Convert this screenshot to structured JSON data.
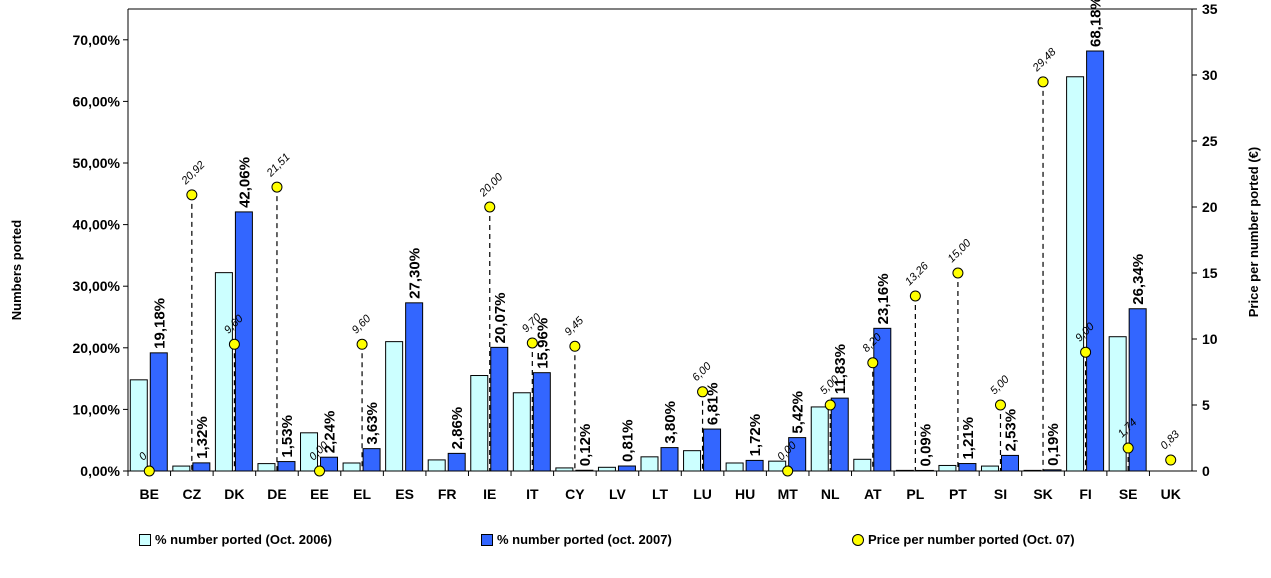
{
  "chart_data": {
    "type": "bar",
    "categories": [
      "BE",
      "CZ",
      "DK",
      "DE",
      "EE",
      "EL",
      "ES",
      "FR",
      "IE",
      "IT",
      "CY",
      "LV",
      "LT",
      "LU",
      "HU",
      "MT",
      "NL",
      "AT",
      "PL",
      "PT",
      "SI",
      "SK",
      "FI",
      "SE",
      "UK"
    ],
    "series": [
      {
        "name": "% number ported (Oct. 2006)",
        "color": "#ccffff",
        "values": [
          14.8,
          0.8,
          32.2,
          1.2,
          6.2,
          1.3,
          21.0,
          1.8,
          15.5,
          12.7,
          0.5,
          0.6,
          2.3,
          3.3,
          1.3,
          1.6,
          10.4,
          1.9,
          0.1,
          0.9,
          0.8,
          0.1,
          64.0,
          21.8,
          0
        ],
        "labels": [
          "",
          "",
          "",
          "",
          "",
          "",
          "",
          "",
          "",
          "",
          "",
          "",
          "",
          "",
          "",
          "",
          "",
          "",
          "",
          "",
          "",
          "",
          "",
          "",
          ""
        ]
      },
      {
        "name": "% number ported (oct. 2007)",
        "color": "#3366ff",
        "values": [
          19.18,
          1.32,
          42.06,
          1.53,
          2.24,
          3.63,
          27.3,
          2.86,
          20.07,
          15.96,
          0.12,
          0.81,
          3.8,
          6.81,
          1.72,
          5.42,
          11.83,
          23.16,
          0.09,
          1.21,
          2.53,
          0.19,
          68.18,
          26.34,
          0
        ],
        "labels": [
          "19,18%",
          "1,32%",
          "42,06%",
          "1,53%",
          "2,24%",
          "3,63%",
          "27,30%",
          "2,86%",
          "20,07%",
          "15,96%",
          "0,12%",
          "0,81%",
          "3,80%",
          "6,81%",
          "1,72%",
          "5,42%",
          "11,83%",
          "23,16%",
          "0,09%",
          "1,21%",
          "2,53%",
          "0,19%",
          "68,18%",
          "26,34%",
          ""
        ]
      },
      {
        "name": "Price per number ported (Oct. 07)",
        "color": "#ffff00",
        "axis": "right",
        "values": [
          0,
          20.92,
          9.6,
          21.51,
          0,
          9.6,
          null,
          null,
          20.0,
          9.7,
          9.45,
          null,
          null,
          6.0,
          null,
          0,
          5.0,
          8.2,
          13.26,
          15.0,
          5.0,
          29.48,
          9.0,
          1.74,
          0.83
        ],
        "labels": [
          "0",
          "20,92",
          "9,60",
          "21,51",
          "0,00",
          "9,60",
          "",
          "",
          "20,00",
          "9,70",
          "9,45",
          "",
          "",
          "6,00",
          "",
          "0,00",
          "5,00",
          "8,20",
          "13,26",
          "15,00",
          "5,00",
          "29,48",
          "9,00",
          "1,74",
          "0,83"
        ]
      }
    ],
    "ylabel": "Numbers ported",
    "y2label": "Price per number ported (€)",
    "ylim": [
      0,
      75
    ],
    "y2lim": [
      0,
      35
    ],
    "yticks": [
      "0,00%",
      "10,00%",
      "20,00%",
      "30,00%",
      "40,00%",
      "50,00%",
      "60,00%",
      "70,00%"
    ],
    "y2ticks": [
      "0",
      "5",
      "10",
      "15",
      "20",
      "25",
      "30",
      "35"
    ],
    "legend_position": "bottom",
    "grid": false
  }
}
